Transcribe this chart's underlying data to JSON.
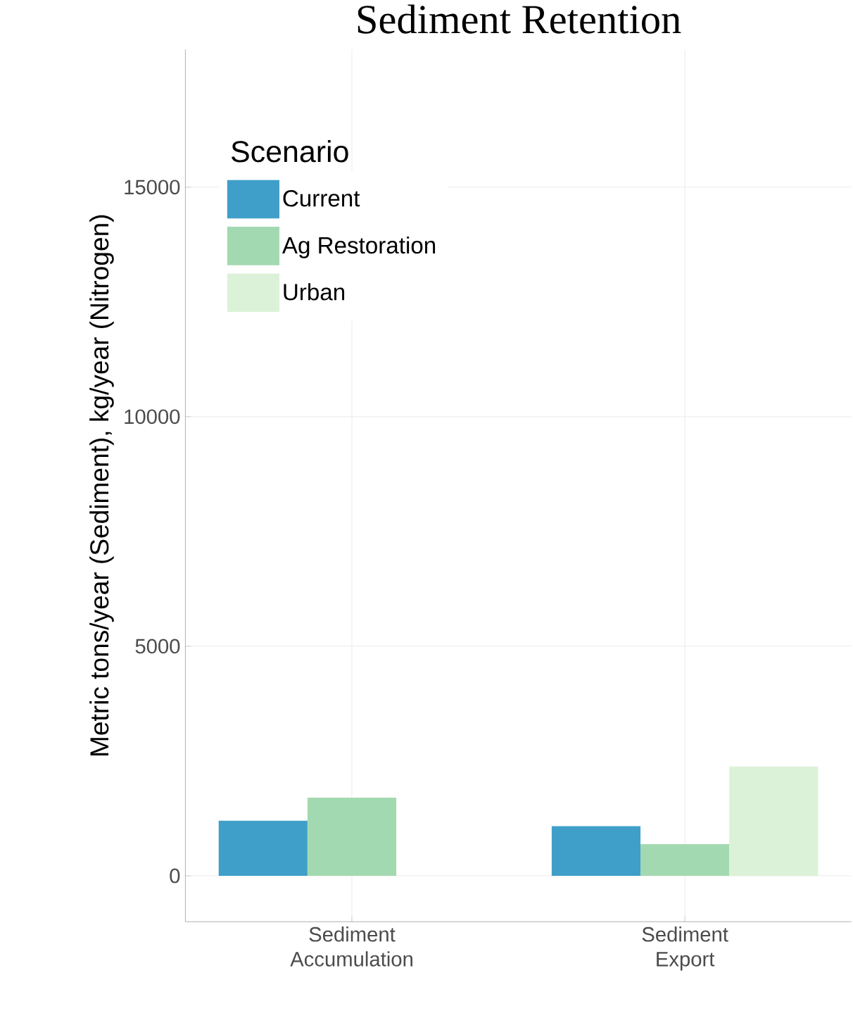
{
  "chart_data": {
    "type": "bar",
    "title": "Sediment Retention",
    "ylabel": "Metric tons/year (Sediment), kg/year (Nitrogen)",
    "legend_title": "Scenario",
    "categories": [
      "Sediment Accumulation",
      "Sediment Export"
    ],
    "series": [
      {
        "name": "Current",
        "color": "#3f9fc9",
        "values": [
          1200,
          1080
        ]
      },
      {
        "name": "Ag Restoration",
        "color": "#a3d9b1",
        "values": [
          1700,
          690
        ]
      },
      {
        "name": "Urban",
        "color": "#dcf2d8",
        "values": [
          null,
          2380
        ]
      }
    ],
    "ylim": [
      -1000,
      18000
    ],
    "yticks": [
      0,
      5000,
      10000,
      15000
    ],
    "grid": true,
    "legend": "top left"
  }
}
